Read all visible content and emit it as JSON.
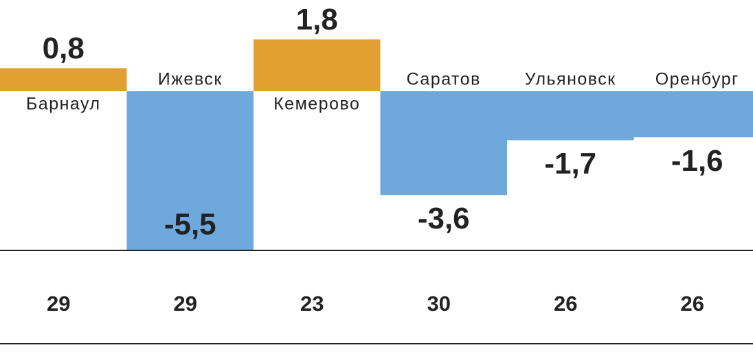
{
  "chart_data": {
    "type": "bar",
    "categories": [
      "Барнаул",
      "Ижевск",
      "Кемерово",
      "Саратов",
      "Ульяновск",
      "Оренбург"
    ],
    "values": [
      0.8,
      -5.5,
      1.8,
      -3.6,
      -1.7,
      -1.6
    ],
    "value_labels": [
      "0,8",
      "-5,5",
      "1,8",
      "-3,6",
      "-1,7",
      "-1,6"
    ],
    "colors": [
      "#e3a032",
      "#6fa8dc",
      "#e3a032",
      "#6fa8dc",
      "#6fa8dc",
      "#6fa8dc"
    ],
    "row_values": [
      29,
      29,
      23,
      30,
      26,
      26
    ]
  }
}
